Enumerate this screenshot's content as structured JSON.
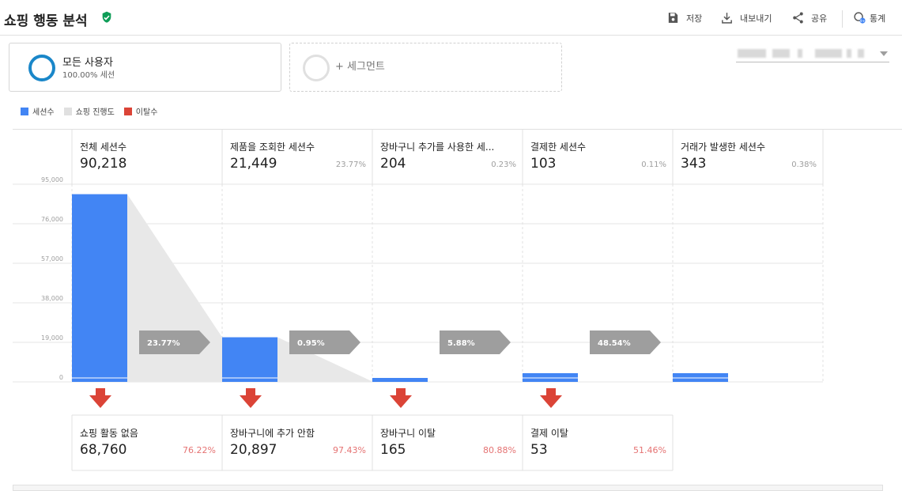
{
  "header": {
    "title": "쇼핑 행동 분석",
    "actions": [
      {
        "label": "저장",
        "icon": "save-icon"
      },
      {
        "label": "내보내기",
        "icon": "download-icon"
      },
      {
        "label": "공유",
        "icon": "share-icon"
      },
      {
        "label": "통계",
        "icon": "insights-icon"
      }
    ]
  },
  "segments": {
    "active": {
      "name": "모든 사용자",
      "sub": "100.00% 세션"
    },
    "add_label": "+ 세그먼트"
  },
  "legend": [
    {
      "label": "세션수",
      "color": "#4285f4"
    },
    {
      "label": "쇼핑 진행도",
      "color": "#e0e0e0"
    },
    {
      "label": "이탈수",
      "color": "#db4437"
    }
  ],
  "colors": {
    "bar": "#4285f4",
    "progress": "#e8e8e8",
    "drop": "#db4437",
    "conversion": "#9e9e9e"
  },
  "chart_data": {
    "type": "bar",
    "categories": [
      "전체 세션수",
      "제품을 조회한 세션수",
      "장바구니 추가를 사용한 세...",
      "결제한 세션수",
      "거래가 발생한 세션수"
    ],
    "series": [
      {
        "name": "세션수",
        "values": [
          90218,
          21449,
          204,
          103,
          343
        ]
      }
    ],
    "ylim": [
      0,
      95000
    ],
    "yticks": [
      "95,000",
      "76,000",
      "57,000",
      "38,000",
      "19,000",
      "0"
    ]
  },
  "stages": [
    {
      "name": "전체 세션수",
      "value": "90,218",
      "pct": ""
    },
    {
      "name": "제품을 조회한 세션수",
      "value": "21,449",
      "pct": "23.77%"
    },
    {
      "name": "장바구니 추가를 사용한 세...",
      "value": "204",
      "pct": "0.23%"
    },
    {
      "name": "결제한 세션수",
      "value": "103",
      "pct": "0.11%"
    },
    {
      "name": "거래가 발생한 세션수",
      "value": "343",
      "pct": "0.38%"
    }
  ],
  "conversions": [
    "23.77%",
    "0.95%",
    "5.88%",
    "48.54%"
  ],
  "dropoffs": [
    {
      "name": "쇼핑 활동 없음",
      "value": "68,760",
      "pct": "76.22%"
    },
    {
      "name": "장바구니에 추가 안함",
      "value": "20,897",
      "pct": "97.43%"
    },
    {
      "name": "장바구니 이탈",
      "value": "165",
      "pct": "80.88%"
    },
    {
      "name": "결제 이탈",
      "value": "53",
      "pct": "51.46%"
    }
  ]
}
